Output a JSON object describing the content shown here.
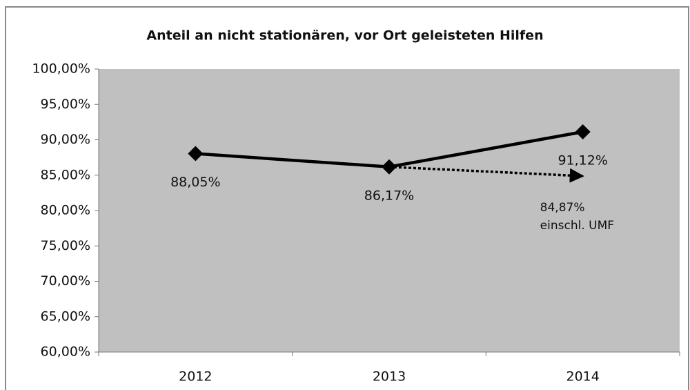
{
  "chart_data": {
    "type": "line",
    "title": "Anteil an nicht stationären, vor Ort geleisteten Hilfen",
    "categories": [
      "2012",
      "2013",
      "2014"
    ],
    "series": [
      {
        "name": null,
        "color": "#000000",
        "style": "solid",
        "marker": "diamond",
        "values": [
          88.05,
          86.17,
          91.12
        ],
        "value_labels": [
          "88,05%",
          "86,17%",
          "91,12%"
        ]
      },
      {
        "name": "einschl. UMF",
        "color": "#000000",
        "style": "dotted",
        "marker": "arrow",
        "values": [
          null,
          86.17,
          84.87
        ],
        "value_labels": [
          null,
          null,
          "84,87%"
        ]
      }
    ],
    "ylim": [
      60,
      100
    ],
    "yticks": [
      {
        "value": 60,
        "label": "60,00%"
      },
      {
        "value": 65,
        "label": "65,00%"
      },
      {
        "value": 70,
        "label": "70,00%"
      },
      {
        "value": 75,
        "label": "75,00%"
      },
      {
        "value": 80,
        "label": "80,00%"
      },
      {
        "value": 85,
        "label": "85,00%"
      },
      {
        "value": 90,
        "label": "90,00%"
      },
      {
        "value": 95,
        "label": "95,00%"
      },
      {
        "value": 100,
        "label": "100,00%"
      }
    ],
    "grid": false,
    "plot_background": "#c0c0c0"
  }
}
